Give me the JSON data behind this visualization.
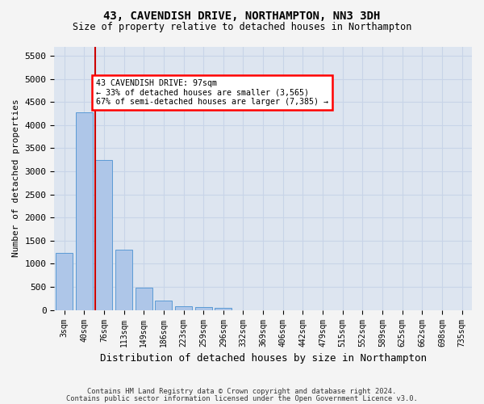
{
  "title1": "43, CAVENDISH DRIVE, NORTHAMPTON, NN3 3DH",
  "title2": "Size of property relative to detached houses in Northampton",
  "xlabel": "Distribution of detached houses by size in Northampton",
  "ylabel": "Number of detached properties",
  "footnote1": "Contains HM Land Registry data © Crown copyright and database right 2024.",
  "footnote2": "Contains public sector information licensed under the Open Government Licence v3.0.",
  "bin_labels": [
    "3sqm",
    "40sqm",
    "76sqm",
    "113sqm",
    "149sqm",
    "186sqm",
    "223sqm",
    "259sqm",
    "296sqm",
    "332sqm",
    "369sqm",
    "406sqm",
    "442sqm",
    "479sqm",
    "515sqm",
    "552sqm",
    "589sqm",
    "625sqm",
    "662sqm",
    "698sqm",
    "735sqm"
  ],
  "bar_values": [
    1230,
    4270,
    3240,
    1310,
    480,
    200,
    90,
    60,
    50,
    0,
    0,
    0,
    0,
    0,
    0,
    0,
    0,
    0,
    0,
    0,
    0
  ],
  "bar_color": "#aec6e8",
  "bar_edge_color": "#5b9bd5",
  "grid_color": "#c8d4e8",
  "red_line_color": "#cc0000",
  "annotation_text_line1": "43 CAVENDISH DRIVE: 97sqm",
  "annotation_text_line2": "← 33% of detached houses are smaller (3,565)",
  "annotation_text_line3": "67% of semi-detached houses are larger (7,385) →",
  "ylim": [
    0,
    5700
  ],
  "yticks": [
    0,
    500,
    1000,
    1500,
    2000,
    2500,
    3000,
    3500,
    4000,
    4500,
    5000,
    5500
  ],
  "background_color": "#dde5f0",
  "fig_background_color": "#f4f4f4"
}
